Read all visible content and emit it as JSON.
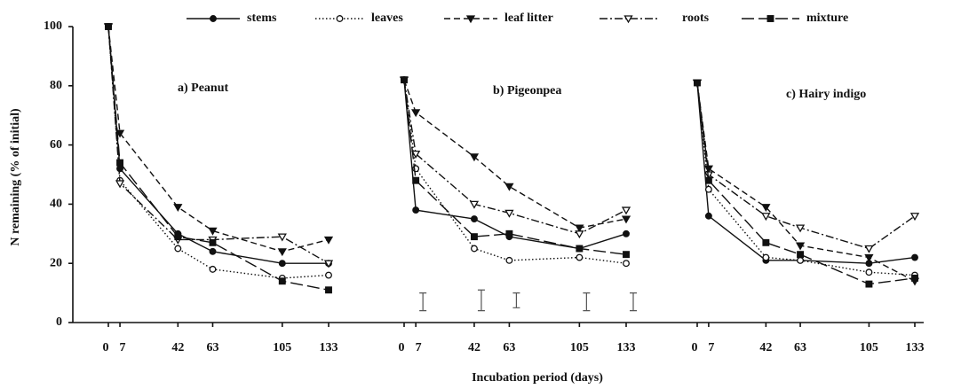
{
  "chart_data": [
    {
      "type": "line",
      "title": "a) Peanut",
      "ylabel": "N remaining (% of initial)",
      "ylim": [
        0,
        100
      ],
      "yticks": [
        0,
        20,
        40,
        60,
        80,
        100
      ],
      "x": [
        0,
        7,
        42,
        63,
        105,
        133
      ],
      "xlim": [
        0,
        133
      ],
      "xticks": [
        0,
        7,
        42,
        63,
        105,
        133
      ],
      "series": [
        {
          "name": "stems",
          "color": "#111",
          "dash": "none",
          "marker": "circle-filled",
          "values": [
            100,
            52,
            30,
            24,
            20,
            20
          ]
        },
        {
          "name": "leaves",
          "color": "#111",
          "dash": "1.5 2.5",
          "marker": "circle-open",
          "values": [
            100,
            48,
            25,
            18,
            15,
            16
          ]
        },
        {
          "name": "leaf litter",
          "color": "#111",
          "dash": "7 4",
          "marker": "triangle-filled",
          "values": [
            100,
            64,
            39,
            31,
            24,
            28
          ]
        },
        {
          "name": "roots",
          "color": "#111",
          "dash": "9 3 2 3",
          "marker": "triangle-open",
          "values": [
            100,
            47,
            28,
            28,
            29,
            20
          ]
        },
        {
          "name": "mixture",
          "color": "#111",
          "dash": "14 5",
          "marker": "square-filled",
          "values": [
            100,
            54,
            29,
            27,
            14,
            11
          ]
        }
      ]
    },
    {
      "type": "line",
      "title": "b) Pigeonpea",
      "xlabel": "Incubation period (days)",
      "x": [
        0,
        7,
        42,
        63,
        105,
        133
      ],
      "xlim": [
        0,
        133
      ],
      "xticks": [
        0,
        7,
        42,
        63,
        105,
        133
      ],
      "series": [
        {
          "name": "stems",
          "values": [
            82,
            38,
            35,
            29,
            25,
            30
          ]
        },
        {
          "name": "leaves",
          "values": [
            82,
            52,
            25,
            21,
            22,
            20
          ]
        },
        {
          "name": "leaf litter",
          "values": [
            82,
            71,
            56,
            46,
            32,
            35
          ]
        },
        {
          "name": "roots",
          "values": [
            82,
            57,
            40,
            37,
            30,
            38
          ]
        },
        {
          "name": "mixture",
          "values": [
            82,
            48,
            29,
            30,
            25,
            23
          ]
        }
      ],
      "error_bars": {
        "x": [
          7,
          42,
          63,
          105,
          133
        ],
        "low": [
          4,
          4,
          5,
          4,
          4
        ],
        "high": [
          10,
          11,
          10,
          10,
          10
        ]
      }
    },
    {
      "type": "line",
      "title": "c) Hairy indigo",
      "x": [
        0,
        7,
        42,
        63,
        105,
        133
      ],
      "xlim": [
        0,
        133
      ],
      "xticks": [
        0,
        7,
        42,
        63,
        105,
        133
      ],
      "series": [
        {
          "name": "stems",
          "values": [
            81,
            36,
            21,
            21,
            20,
            22
          ]
        },
        {
          "name": "leaves",
          "values": [
            81,
            45,
            22,
            21,
            17,
            16
          ]
        },
        {
          "name": "leaf litter",
          "values": [
            81,
            52,
            39,
            26,
            22,
            14
          ]
        },
        {
          "name": "roots",
          "values": [
            81,
            50,
            36,
            32,
            25,
            36
          ]
        },
        {
          "name": "mixture",
          "values": [
            81,
            48,
            27,
            23,
            13,
            15
          ]
        }
      ]
    }
  ]
}
